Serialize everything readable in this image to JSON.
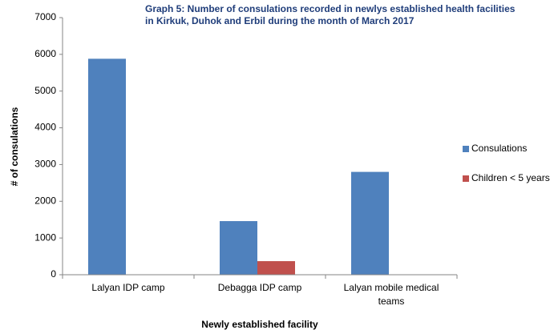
{
  "chart_data": {
    "type": "bar",
    "title": "Graph 5: Number of consulations recorded in newlys established health facilities in Kirkuk, Duhok and Erbil during the month of March 2017",
    "x_label": "Newly established facility",
    "y_label": "# of consulations",
    "categories": [
      "Lalyan IDP camp",
      "Debagga IDP camp",
      "Lalyan mobile medical teams"
    ],
    "series": [
      {
        "name": "Consulations",
        "color": "#4f81bd",
        "values": [
          5880,
          1460,
          2800
        ]
      },
      {
        "name": "Children < 5 years",
        "color": "#c0504d",
        "values": [
          null,
          370,
          null
        ]
      }
    ],
    "ylim": [
      0,
      7000
    ],
    "yticks": [
      0,
      1000,
      2000,
      3000,
      4000,
      5000,
      6000,
      7000
    ],
    "grid": false,
    "legend": "right"
  }
}
